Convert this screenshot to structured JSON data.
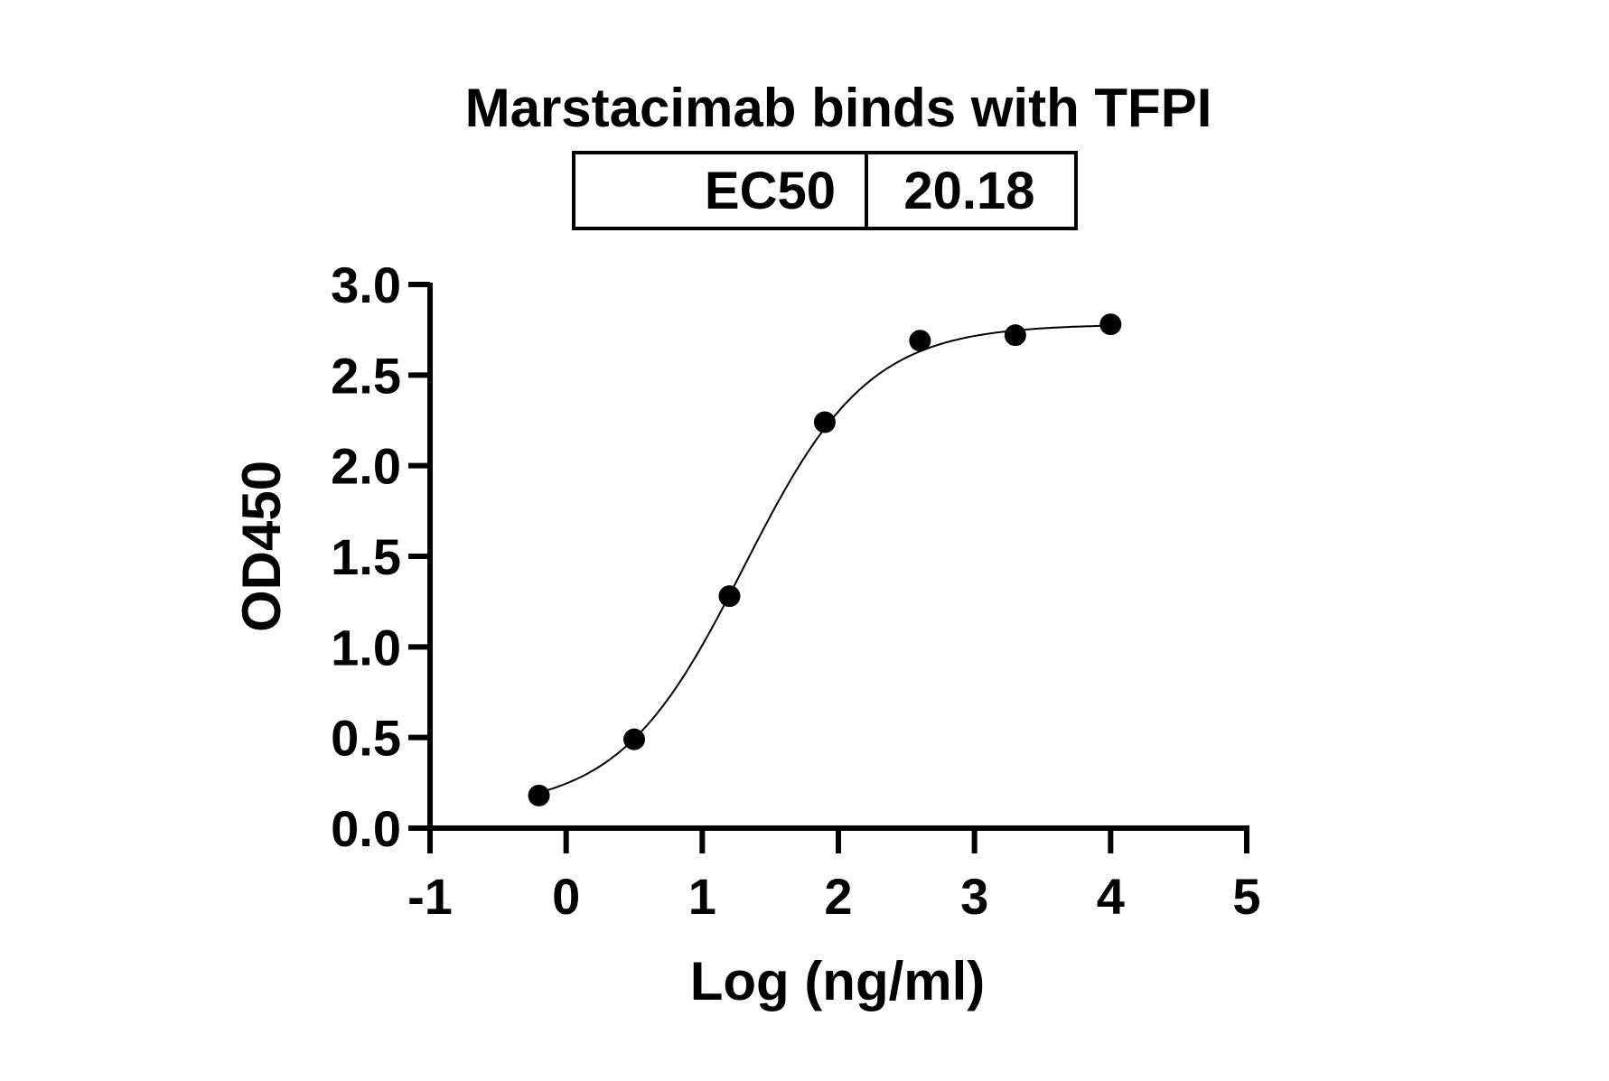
{
  "chart_data": {
    "type": "scatter",
    "title": "Marstacimab binds with TFPI",
    "annotation_table": {
      "label": "EC50",
      "value": "20.18"
    },
    "xlabel": "Log (ng/ml)",
    "ylabel": "OD450",
    "xlim": [
      -1,
      5
    ],
    "ylim": [
      0,
      3.0
    ],
    "x_ticks": [
      "-1",
      "0",
      "1",
      "2",
      "3",
      "4",
      "5"
    ],
    "y_ticks": [
      "0.0",
      "0.5",
      "1.0",
      "1.5",
      "2.0",
      "2.5",
      "3.0"
    ],
    "grid": false,
    "series": [
      {
        "x": [
          -0.2,
          0.5,
          1.2,
          1.9,
          2.6,
          3.3,
          4.0
        ],
        "y": [
          0.18,
          0.49,
          1.28,
          2.24,
          2.69,
          2.72,
          2.78
        ],
        "fit": "four-parameter logistic curve",
        "color": "#000000"
      }
    ]
  }
}
